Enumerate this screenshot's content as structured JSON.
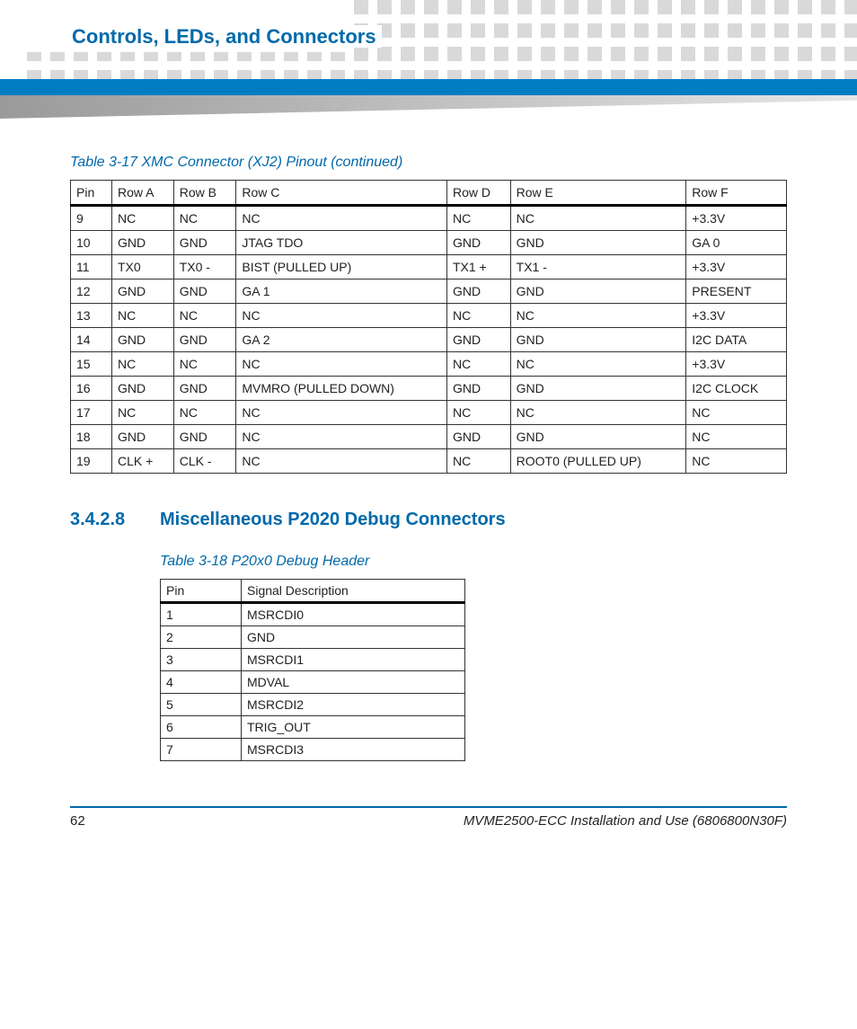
{
  "header": {
    "chapter_title": "Controls, LEDs, and Connectors",
    "accent_color": "#0069aa",
    "bar_color": "#007cc3",
    "dot_color": "#d9d9d9"
  },
  "table1": {
    "caption": "Table 3-17 XMC Connector (XJ2) Pinout (continued)",
    "columns": [
      "Pin",
      "Row A",
      "Row B",
      "Row C",
      "Row D",
      "Row E",
      "Row F"
    ],
    "rows": [
      [
        "9",
        "NC",
        "NC",
        "NC",
        "NC",
        "NC",
        "+3.3V"
      ],
      [
        "10",
        "GND",
        "GND",
        "JTAG TDO",
        "GND",
        "GND",
        "GA 0"
      ],
      [
        "11",
        "TX0",
        "TX0 -",
        "BIST (PULLED UP)",
        "TX1 +",
        "TX1 -",
        "+3.3V"
      ],
      [
        "12",
        "GND",
        "GND",
        "GA 1",
        "GND",
        "GND",
        "PRESENT"
      ],
      [
        "13",
        "NC",
        "NC",
        "NC",
        "NC",
        "NC",
        "+3.3V"
      ],
      [
        "14",
        "GND",
        "GND",
        "GA 2",
        "GND",
        "GND",
        "I2C DATA"
      ],
      [
        "15",
        "NC",
        "NC",
        "NC",
        "NC",
        "NC",
        "+3.3V"
      ],
      [
        "16",
        "GND",
        "GND",
        "MVMRO (PULLED DOWN)",
        "GND",
        "GND",
        "I2C CLOCK"
      ],
      [
        "17",
        "NC",
        "NC",
        "NC",
        "NC",
        "NC",
        "NC"
      ],
      [
        "18",
        "GND",
        "GND",
        "NC",
        "GND",
        "GND",
        "NC"
      ],
      [
        "19",
        "CLK +",
        "CLK -",
        "NC",
        "NC",
        "ROOT0 (PULLED UP)",
        "NC"
      ]
    ]
  },
  "section": {
    "number": "3.4.2.8",
    "title": "Miscellaneous P2020 Debug Connectors"
  },
  "table2": {
    "caption": "Table 3-18 P20x0 Debug Header",
    "columns": [
      "Pin",
      "Signal Description"
    ],
    "rows": [
      [
        "1",
        "MSRCDI0"
      ],
      [
        "2",
        "GND"
      ],
      [
        "3",
        "MSRCDI1"
      ],
      [
        "4",
        "MDVAL"
      ],
      [
        "5",
        "MSRCDI2"
      ],
      [
        "6",
        "TRIG_OUT"
      ],
      [
        "7",
        "MSRCDI3"
      ]
    ]
  },
  "footer": {
    "page_number": "62",
    "doc_title": "MVME2500-ECC Installation and Use (6806800N30F)"
  }
}
